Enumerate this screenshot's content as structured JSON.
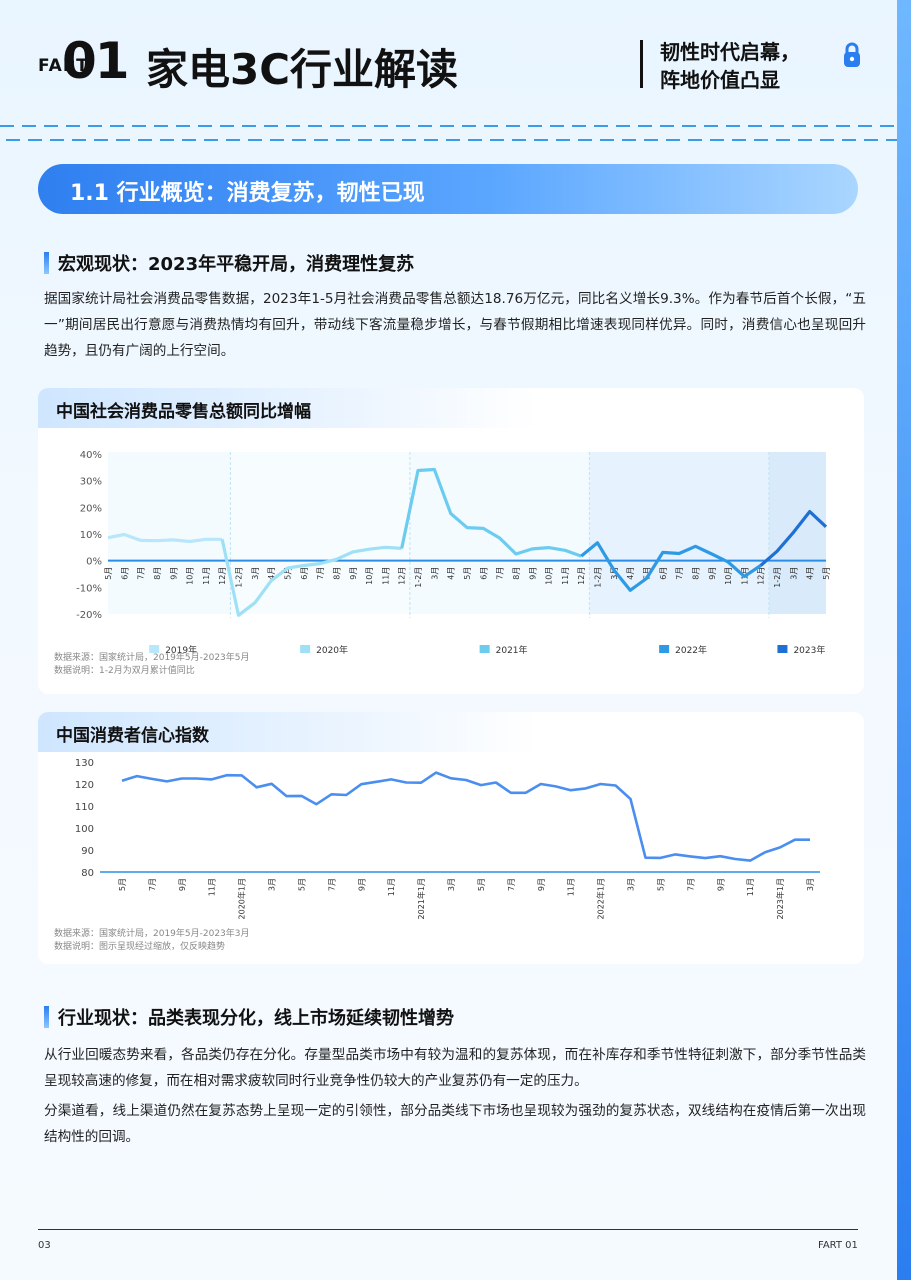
{
  "header": {
    "part_label": "FART",
    "number": "01",
    "title": "家电3C行业解读",
    "subtitle_line1": "韧性时代启幕，",
    "subtitle_line2": "阵地价值凸显",
    "icon": "lock-icon"
  },
  "section": {
    "title": "1.1 行业概览：消费复苏，韧性已现"
  },
  "macro": {
    "heading": "宏观现状：2023年平稳开局，消费理性复苏",
    "paragraph": "据国家统计局社会消费品零售数据，2023年1-5月社会消费品零售总额达18.76万亿元，同比名义增长9.3%。作为春节后首个长假，“五一”期间居民出行意愿与消费热情均有回升，带动线下客流量稳步增长，与春节假期相比增速表现同样优异。同时，消费信心也呈现回升趋势，且仍有广阔的上行空间。"
  },
  "charts": [
    {
      "card_title": "中国社会消费品零售总额同比增幅",
      "source_line1": "数据来源：国家统计局，2019年5月-2023年5月",
      "source_line2": "数据说明：1-2月为双月累计值同比",
      "chart_data": {
        "type": "line",
        "title": "中国社会消费品零售总额同比增幅",
        "y_ticks": [
          "40%",
          "30%",
          "20%",
          "10%",
          "0%",
          "-10%",
          "-20%"
        ],
        "ylim": [
          -20,
          40
        ],
        "grid": false,
        "legend_position": "bottom",
        "x": [
          "5月",
          "6月",
          "7月",
          "8月",
          "9月",
          "10月",
          "11月",
          "12月",
          "1-2月",
          "3月",
          "4月",
          "5月",
          "6月",
          "7月",
          "8月",
          "9月",
          "10月",
          "11月",
          "12月",
          "1-2月",
          "3月",
          "4月",
          "5月",
          "6月",
          "7月",
          "8月",
          "9月",
          "10月",
          "11月",
          "12月",
          "1-2月",
          "3月",
          "4月",
          "5月",
          "6月",
          "7月",
          "8月",
          "9月",
          "10月",
          "11月",
          "12月",
          "1-2月",
          "3月",
          "4月",
          "5月"
        ],
        "values": [
          8.6,
          9.8,
          7.6,
          7.5,
          7.8,
          7.2,
          8.0,
          8.0,
          -20.5,
          -15.8,
          -7.5,
          -2.8,
          -1.8,
          -1.1,
          0.5,
          3.3,
          4.3,
          5.0,
          4.6,
          33.8,
          34.2,
          17.7,
          12.4,
          12.1,
          8.5,
          2.5,
          4.4,
          4.9,
          3.9,
          1.7,
          6.7,
          -3.5,
          -11.1,
          -6.7,
          3.1,
          2.7,
          5.4,
          2.5,
          -0.5,
          -5.9,
          -1.8,
          3.5,
          10.6,
          18.4,
          12.7
        ],
        "series": [
          {
            "name": "2019年",
            "start": 0,
            "end": 7,
            "color": "#b8e6fa"
          },
          {
            "name": "2020年",
            "start": 8,
            "end": 18,
            "color": "#9ee0f6"
          },
          {
            "name": "2021年",
            "start": 19,
            "end": 29,
            "color": "#6cccf0"
          },
          {
            "name": "2022年",
            "start": 30,
            "end": 40,
            "color": "#2e9ae6"
          },
          {
            "name": "2023年",
            "start": 41,
            "end": 44,
            "color": "#1f6fd4"
          }
        ]
      }
    },
    {
      "card_title": "中国消费者信心指数",
      "source_line1": "数据来源：国家统计局，2019年5月-2023年3月",
      "source_line2": "数据说明：图示呈现经过缩放，仅反映趋势",
      "chart_data": {
        "type": "line",
        "title": "中国消费者信心指数",
        "y_ticks": [
          "130",
          "120",
          "110",
          "100",
          "90",
          "80"
        ],
        "ylim": [
          80,
          130
        ],
        "grid": false,
        "x_labels": [
          "5月",
          "7月",
          "9月",
          "11月",
          "2020年1月",
          "3月",
          "5月",
          "7月",
          "9月",
          "11月",
          "2021年1月",
          "3月",
          "5月",
          "7月",
          "9月",
          "11月",
          "2022年1月",
          "3月",
          "5月",
          "7月",
          "9月",
          "11月",
          "2023年1月",
          "3月"
        ],
        "values": [
          121.5,
          123.6,
          122.3,
          121.2,
          122.5,
          122.5,
          122.1,
          124.0,
          123.9,
          118.5,
          120.1,
          114.5,
          114.6,
          110.8,
          115.3,
          115.0,
          119.9,
          121.0,
          122.1,
          120.7,
          120.6,
          125.2,
          122.6,
          121.8,
          119.5,
          120.7,
          116.0,
          116.0,
          120.0,
          118.9,
          117.2,
          118.0,
          120.0,
          119.3,
          113.2,
          86.5,
          86.4,
          88.0,
          87.1,
          86.3,
          87.2,
          85.9,
          85.2,
          89.0,
          91.2,
          94.7,
          94.7
        ],
        "color": "#4a8ef0"
      }
    }
  ],
  "industry": {
    "heading": "行业现状：品类表现分化，线上市场延续韧性增势",
    "paragraph1": "从行业回暖态势来看，各品类仍存在分化。存量型品类市场中有较为温和的复苏体现，而在补库存和季节性特征刺激下，部分季节性品类呈现较高速的修复，而在相对需求疲软同时行业竞争性仍较大的产业复苏仍有一定的压力。",
    "paragraph2": "分渠道看，线上渠道仍然在复苏态势上呈现一定的引领性，部分品类线下市场也呈现较为强劲的复苏状态，双线结构在疫情后第一次出现结构性的回调。"
  },
  "footer": {
    "page": "03",
    "part": "FART 01"
  }
}
